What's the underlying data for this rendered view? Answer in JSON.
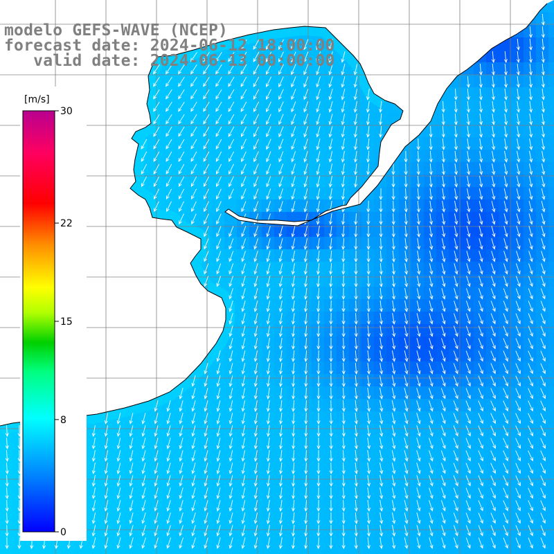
{
  "header": {
    "model_line": "modelo GEFS-WAVE (NCEP)",
    "forecast_line": "forecast date: 2024-06-12 18:00:00",
    "valid_line": "   valid date: 2024-06-13 00:00:00"
  },
  "colorbar": {
    "unit_label": "[m/s]",
    "ticks": [
      {
        "value": 30,
        "label": "30"
      },
      {
        "value": 22,
        "label": "22"
      },
      {
        "value": 15,
        "label": "15"
      },
      {
        "value": 8,
        "label": "8"
      },
      {
        "value": 0,
        "label": "0"
      }
    ],
    "range": [
      0,
      30
    ],
    "colors": [
      "#0000ff",
      "#00a0ff",
      "#00ffff",
      "#00ff80",
      "#00c800",
      "#c8ff00",
      "#ffff00",
      "#ff8000",
      "#ff0000",
      "#ff0050",
      "#c80078",
      "#a0008c"
    ]
  },
  "map": {
    "variable": "wind speed [m/s]",
    "wind_direction": "south-southwest (toward)",
    "land_color": "#ffffff",
    "grid_color": "#808080",
    "coastline_color": "#000000",
    "arrow_color": "#ffffff",
    "field_colors": {
      "weak": "#0060f0",
      "moderate": "#0090ff",
      "strong": "#00c8ff"
    }
  }
}
